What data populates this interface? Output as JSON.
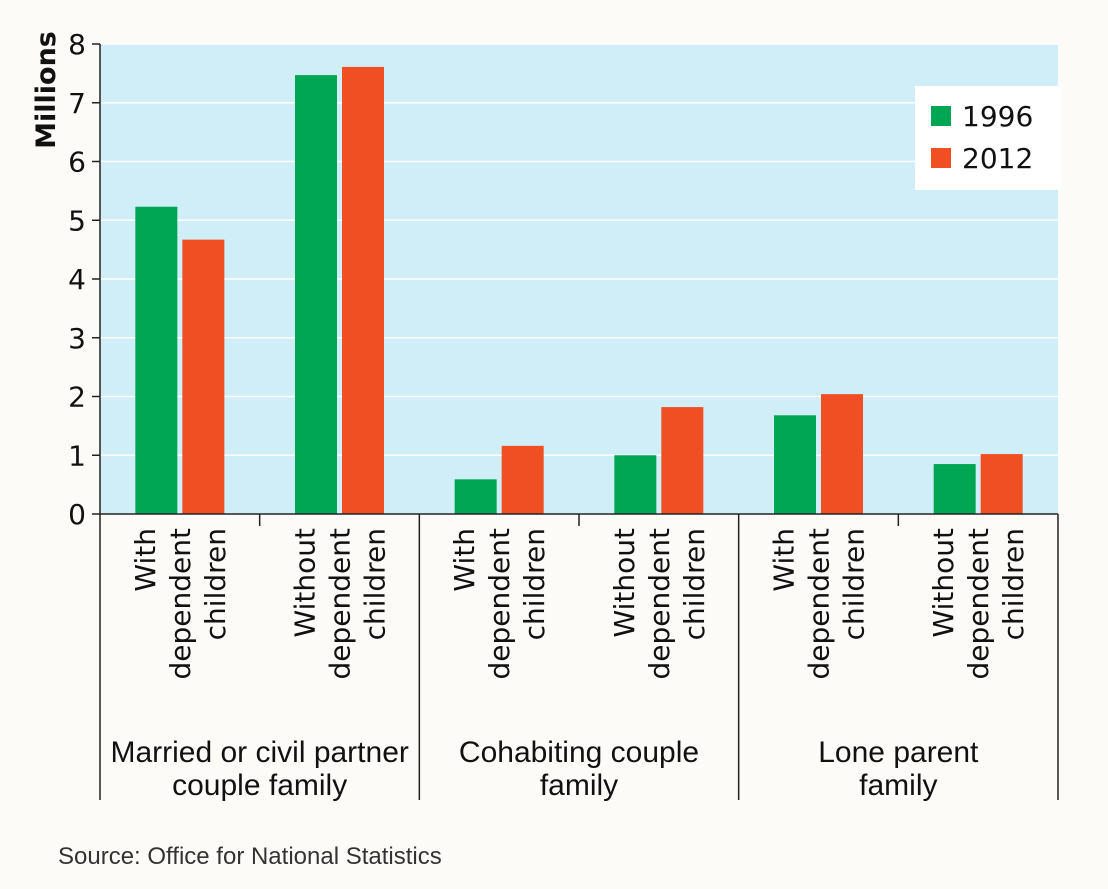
{
  "chart_data": {
    "type": "bar",
    "ylabel": "Millions",
    "ylim": [
      0,
      8
    ],
    "yticks": [
      "0",
      "1",
      "2",
      "3",
      "4",
      "5",
      "6",
      "7",
      "8"
    ],
    "groups": [
      {
        "label_lines": [
          "Married or civil partner",
          "couple family"
        ],
        "categories": [
          {
            "lines": [
              "With",
              "dependent",
              "children"
            ]
          },
          {
            "lines": [
              "Without",
              "dependent",
              "children"
            ]
          }
        ]
      },
      {
        "label_lines": [
          "Cohabiting couple",
          "family"
        ],
        "categories": [
          {
            "lines": [
              "With",
              "dependent",
              "children"
            ]
          },
          {
            "lines": [
              "Without",
              "dependent",
              "children"
            ]
          }
        ]
      },
      {
        "label_lines": [
          "Lone parent",
          "family"
        ],
        "categories": [
          {
            "lines": [
              "With",
              "dependent",
              "children"
            ]
          },
          {
            "lines": [
              "Without",
              "dependent",
              "children"
            ]
          }
        ]
      }
    ],
    "series": [
      {
        "name": "1996",
        "color": "#00a651",
        "values": [
          5.23,
          7.47,
          0.59,
          1.0,
          1.68,
          0.85
        ]
      },
      {
        "name": "2012",
        "color": "#f04e23",
        "values": [
          4.67,
          7.61,
          1.16,
          1.82,
          2.04,
          1.02
        ]
      }
    ],
    "legend_position": "top-right",
    "plot_background": "#cfeef8",
    "grid": true
  },
  "source": "Source: Office for National Statistics"
}
